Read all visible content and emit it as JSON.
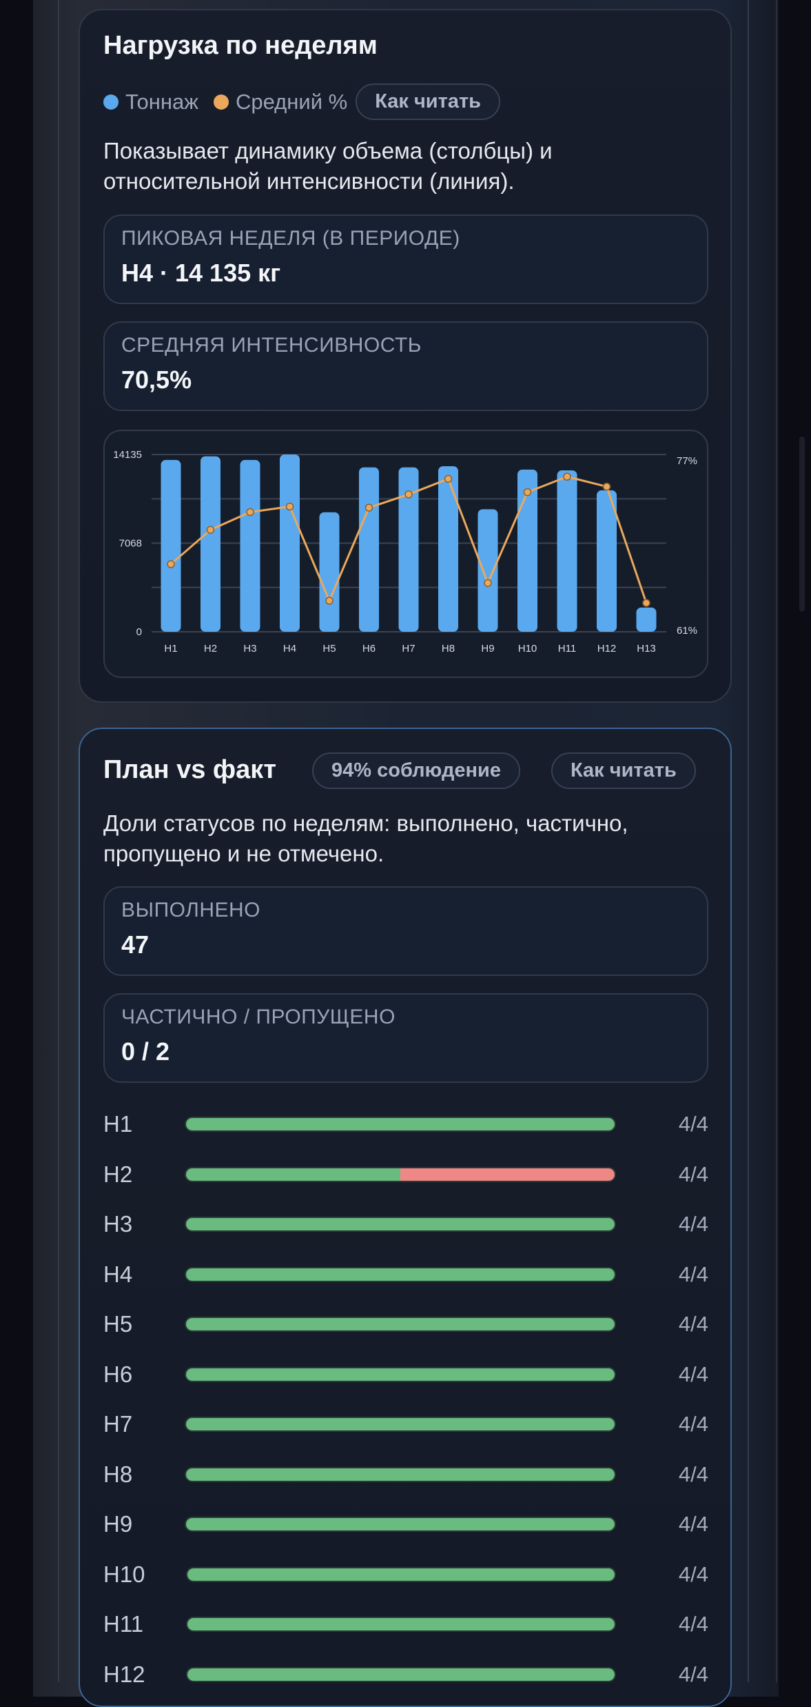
{
  "load_card": {
    "title": "Нагрузка по неделям",
    "legend": [
      {
        "label": "Тоннаж",
        "color": "#5aa9ee"
      },
      {
        "label": "Средний %",
        "color": "#eba85c"
      }
    ],
    "help_button": "Как читать",
    "description": "Показывает динамику объема (столбцы) и относительной интенсивности (линия).",
    "stats": [
      {
        "label": "ПИКОВАЯ НЕДЕЛЯ (В ПЕРИОДЕ)",
        "value": "Н4 · 14 135 кг"
      },
      {
        "label": "СРЕДНЯЯ ИНТЕНСИВНОСТЬ",
        "value": "70,5%"
      }
    ]
  },
  "chart_data": {
    "type": "bar",
    "title": "Нагрузка по неделям",
    "categories": [
      "Н1",
      "Н2",
      "Н3",
      "Н4",
      "Н5",
      "Н6",
      "Н7",
      "Н8",
      "Н9",
      "Н10",
      "Н11",
      "Н12",
      "Н13"
    ],
    "series": [
      {
        "name": "Тоннаж",
        "type": "bar",
        "axis": "left",
        "color": "#5aa9ee",
        "values": [
          13700,
          13990,
          13700,
          14135,
          9530,
          13110,
          13110,
          13200,
          9770,
          12930,
          12870,
          11280,
          1930
        ]
      },
      {
        "name": "Средний %",
        "type": "line",
        "axis": "right",
        "color": "#eba85c",
        "values": [
          67.1,
          70.2,
          71.8,
          72.3,
          63.8,
          72.2,
          73.4,
          74.8,
          65.4,
          73.6,
          75.0,
          74.1,
          63.6
        ]
      }
    ],
    "left_axis": {
      "ticks": [
        "14135",
        "7068",
        "0"
      ],
      "range": [
        0,
        14135
      ]
    },
    "right_axis": {
      "ticks": [
        "77%",
        "61%"
      ],
      "range": [
        61,
        77
      ]
    },
    "xlabel": "",
    "ylabel": "",
    "grid": true,
    "legend_position": "top"
  },
  "plan_card": {
    "title": "План vs факт",
    "compliance_badge": "94% соблюдение",
    "help_button": "Как читать",
    "description": "Доли статусов по неделям: выполнено, частично, пропущено и не отмечено.",
    "stats": [
      {
        "label": "ВЫПОЛНЕНО",
        "value": "47"
      },
      {
        "label": "ЧАСТИЧНО / ПРОПУЩЕНО",
        "value": "0 / 2"
      }
    ],
    "colors": {
      "done": "#69bb7f",
      "missed": "#ef8784"
    },
    "weeks": [
      {
        "label": "Н1",
        "done_pct": 100,
        "missed_pct": 0,
        "count": "4/4"
      },
      {
        "label": "Н2",
        "done_pct": 50,
        "missed_pct": 50,
        "count": "4/4"
      },
      {
        "label": "Н3",
        "done_pct": 100,
        "missed_pct": 0,
        "count": "4/4"
      },
      {
        "label": "Н4",
        "done_pct": 100,
        "missed_pct": 0,
        "count": "4/4"
      },
      {
        "label": "Н5",
        "done_pct": 100,
        "missed_pct": 0,
        "count": "4/4"
      },
      {
        "label": "Н6",
        "done_pct": 100,
        "missed_pct": 0,
        "count": "4/4"
      },
      {
        "label": "Н7",
        "done_pct": 100,
        "missed_pct": 0,
        "count": "4/4"
      },
      {
        "label": "Н8",
        "done_pct": 100,
        "missed_pct": 0,
        "count": "4/4"
      },
      {
        "label": "Н9",
        "done_pct": 100,
        "missed_pct": 0,
        "count": "4/4"
      },
      {
        "label": "Н10",
        "done_pct": 100,
        "missed_pct": 0,
        "count": "4/4"
      },
      {
        "label": "Н11",
        "done_pct": 100,
        "missed_pct": 0,
        "count": "4/4"
      },
      {
        "label": "Н12",
        "done_pct": 100,
        "missed_pct": 0,
        "count": "4/4"
      }
    ]
  }
}
